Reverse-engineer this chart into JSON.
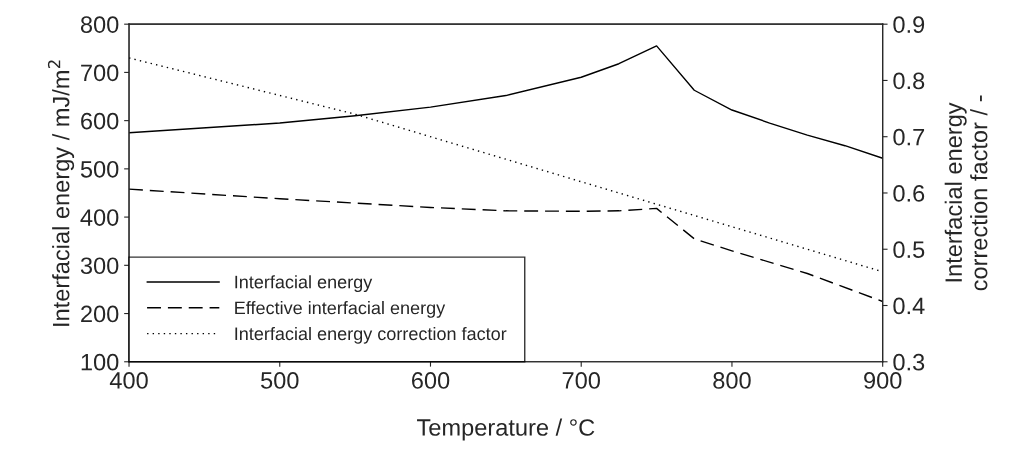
{
  "chart_data": {
    "type": "line",
    "xlabel": "Temperature / °C",
    "ylabel": "Interfacial energy / mJ/m$^{2}$",
    "y2label": "Interfacial energy\ncorrection factor / -",
    "xlim": [
      400,
      900
    ],
    "xticks": [
      400,
      500,
      600,
      700,
      800,
      900
    ],
    "ylim": [
      100,
      800
    ],
    "yticks": [
      100,
      200,
      300,
      400,
      500,
      600,
      700,
      800
    ],
    "y2lim": [
      0.3,
      0.9
    ],
    "y2ticks": [
      0.3,
      0.4,
      0.5,
      0.6,
      0.7,
      0.8,
      0.9
    ],
    "grid": false,
    "legend": "bottom left",
    "series": [
      {
        "name": "Interfacial energy",
        "color": "#000000",
        "line_style": "solid",
        "x": [
          400,
          500,
          550,
          600,
          650,
          700,
          725,
          750,
          775,
          800,
          825,
          850,
          875,
          900
        ],
        "values": [
          575,
          595,
          610,
          628,
          652,
          690,
          718,
          755,
          663,
          622,
          595,
          570,
          548,
          522
        ]
      },
      {
        "name": "Effective interfacial energy",
        "color": "#000000",
        "line_style": "dashed",
        "x": [
          400,
          500,
          600,
          650,
          700,
          725,
          750,
          775,
          800,
          850,
          900
        ],
        "values": [
          458,
          438,
          420,
          413,
          412,
          413,
          418,
          355,
          330,
          283,
          225
        ]
      },
      {
        "name": "Interfacial energy correction factor",
        "color": "#000000",
        "line_style": "dotted",
        "axis": "y2",
        "x": [
          400,
          550,
          750,
          800,
          900
        ],
        "values": [
          0.84,
          0.74,
          0.58,
          0.54,
          0.46
        ]
      }
    ]
  }
}
